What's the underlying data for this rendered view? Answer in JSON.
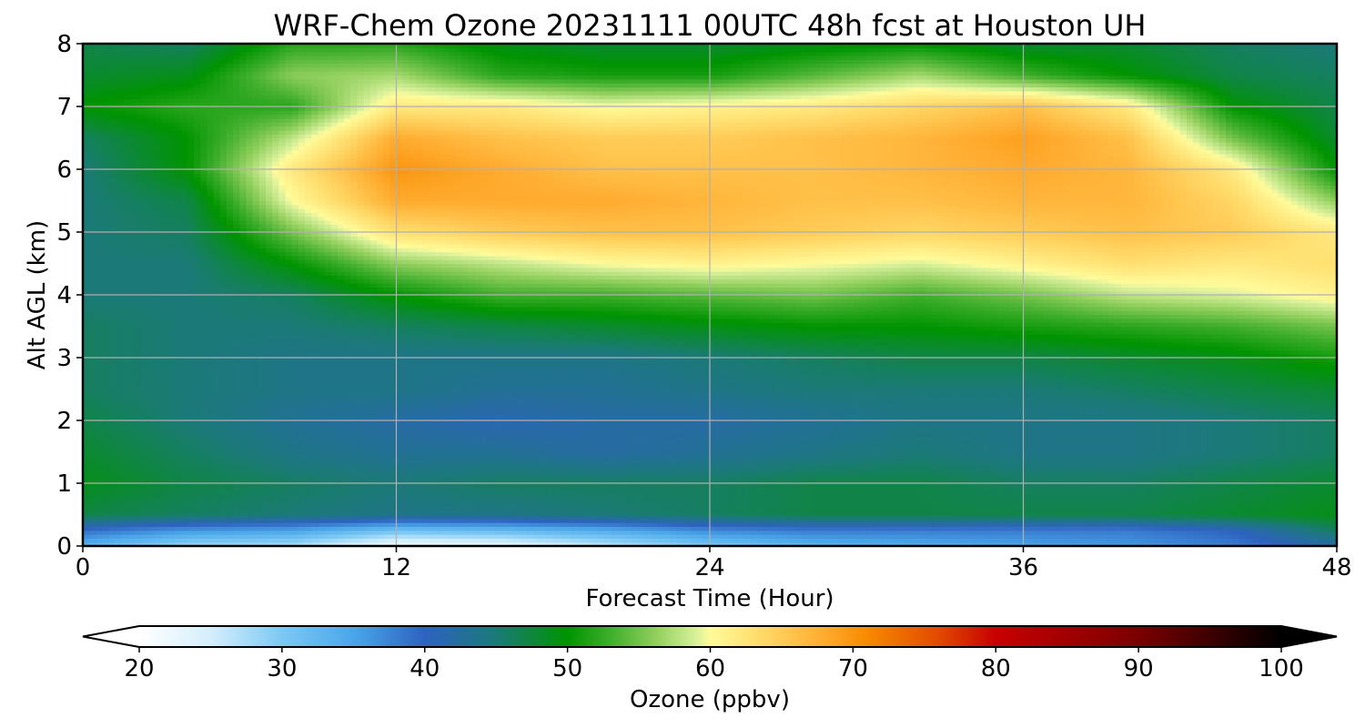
{
  "chart_data": {
    "type": "heatmap",
    "title": "WRF-Chem Ozone  20231111 00UTC 48h fcst at Houston UH",
    "xlabel": "Forecast Time (Hour)",
    "ylabel": "Alt AGL (km)",
    "xlim": [
      0,
      48
    ],
    "ylim": [
      0,
      8
    ],
    "xticks": [
      0,
      12,
      24,
      36,
      48
    ],
    "yticks": [
      0,
      1,
      2,
      3,
      4,
      5,
      6,
      7,
      8
    ],
    "grid": true,
    "z_hours": [
      0,
      4,
      8,
      12,
      16,
      20,
      24,
      28,
      32,
      36,
      40,
      44,
      48
    ],
    "z_alt_km": [
      0,
      0.25,
      0.5,
      1,
      1.5,
      2,
      2.5,
      3,
      3.5,
      4,
      4.5,
      5,
      5.5,
      6,
      6.5,
      7,
      7.5,
      8
    ],
    "z_ozone_ppbv": [
      [
        33,
        28,
        27,
        21,
        22,
        26,
        30,
        33,
        34,
        35,
        36,
        38,
        42
      ],
      [
        39,
        36,
        35,
        31,
        32,
        34,
        37,
        38,
        38,
        38,
        38,
        40,
        46
      ],
      [
        47,
        46,
        45,
        44,
        44,
        45,
        46,
        47,
        47,
        47,
        47,
        48,
        49
      ],
      [
        49,
        47,
        46,
        45,
        46,
        46,
        46,
        47,
        47,
        46,
        46,
        47,
        48
      ],
      [
        48,
        46,
        44,
        43,
        43,
        42,
        43,
        44,
        45,
        44,
        44,
        45,
        46
      ],
      [
        47,
        45,
        43,
        42,
        41,
        42,
        42,
        43,
        44,
        44,
        44,
        45,
        46
      ],
      [
        46,
        45,
        44,
        44,
        43,
        43,
        44,
        45,
        45,
        45,
        46,
        47,
        48
      ],
      [
        46,
        45,
        44,
        44,
        44,
        44,
        45,
        46,
        47,
        47,
        48,
        49,
        51
      ],
      [
        46,
        45,
        45,
        46,
        47,
        48,
        49,
        50,
        50,
        51,
        52,
        53,
        55
      ],
      [
        45,
        45,
        46,
        50,
        53,
        53,
        54,
        55,
        53,
        55,
        58,
        59,
        61
      ],
      [
        45,
        45,
        50,
        56,
        58,
        60,
        61,
        60,
        59,
        61,
        63,
        62,
        63
      ],
      [
        45,
        46,
        55,
        63,
        65,
        66,
        66,
        65,
        64,
        65,
        66,
        65,
        62
      ],
      [
        45,
        47,
        60,
        68,
        68,
        68,
        67,
        66,
        66,
        67,
        67,
        64,
        56
      ],
      [
        45,
        50,
        62,
        70,
        68,
        66,
        66,
        66,
        67,
        68,
        67,
        62,
        50
      ],
      [
        46,
        50,
        58,
        68,
        66,
        65,
        65,
        66,
        67,
        69,
        66,
        55,
        48
      ],
      [
        50,
        52,
        52,
        62,
        62,
        60,
        61,
        62,
        64,
        66,
        62,
        50,
        47
      ],
      [
        48,
        49,
        56,
        57,
        52,
        51,
        51,
        54,
        57,
        53,
        50,
        47,
        46
      ],
      [
        47,
        46,
        52,
        52,
        49,
        48,
        48,
        49,
        50,
        48,
        48,
        46,
        45
      ]
    ],
    "colorbar": {
      "label": "Ozone  (ppbv)",
      "min": 20,
      "max": 100,
      "ticks": [
        20,
        30,
        40,
        50,
        60,
        70,
        80,
        90,
        100
      ],
      "extend": "both",
      "stops": [
        {
          "v": 20,
          "c": "#ffffff"
        },
        {
          "v": 25,
          "c": "#d4eefc"
        },
        {
          "v": 30,
          "c": "#7cc8f4"
        },
        {
          "v": 35,
          "c": "#4aa6e8"
        },
        {
          "v": 40,
          "c": "#2e62c0"
        },
        {
          "v": 45,
          "c": "#1b7a78"
        },
        {
          "v": 50,
          "c": "#009400"
        },
        {
          "v": 53,
          "c": "#3fae2c"
        },
        {
          "v": 56,
          "c": "#8ccd5a"
        },
        {
          "v": 59,
          "c": "#d8f09a"
        },
        {
          "v": 60,
          "c": "#fffb9a"
        },
        {
          "v": 64,
          "c": "#ffd664"
        },
        {
          "v": 68,
          "c": "#ffab2e"
        },
        {
          "v": 71,
          "c": "#f78a00"
        },
        {
          "v": 76,
          "c": "#e14a00"
        },
        {
          "v": 80,
          "c": "#c80000"
        },
        {
          "v": 90,
          "c": "#7a0000"
        },
        {
          "v": 100,
          "c": "#000000"
        }
      ]
    }
  }
}
